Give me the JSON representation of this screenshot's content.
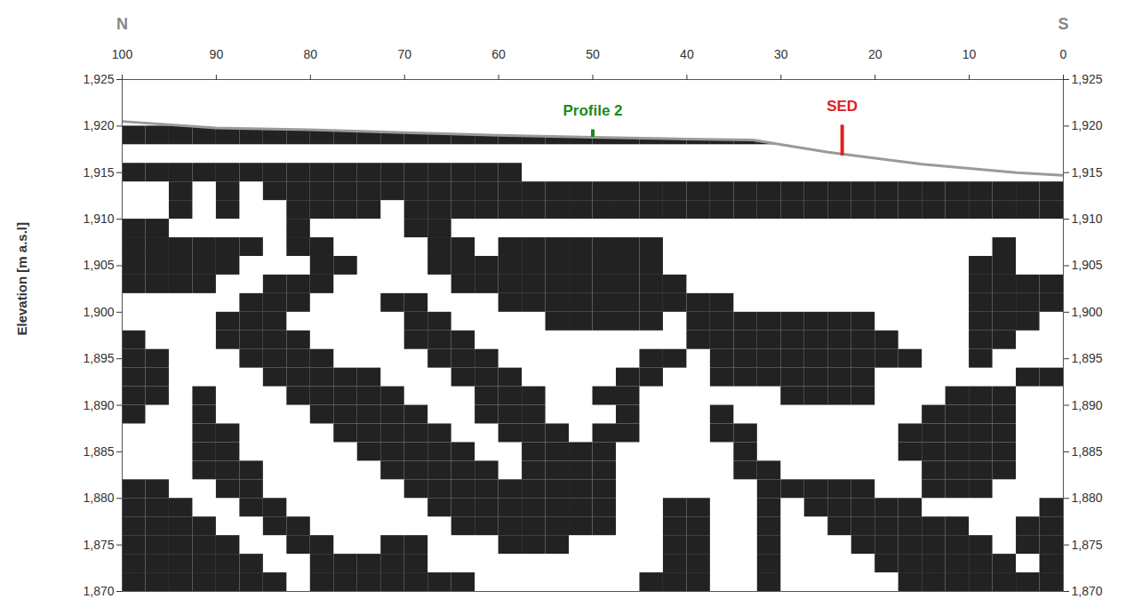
{
  "chart_data": {
    "type": "heatmap",
    "direction_labels": [
      "N",
      "S"
    ],
    "ylabel": "Elevation [m a.s.l]",
    "xlim": [
      100,
      0
    ],
    "xticks": [
      100,
      90,
      80,
      70,
      60,
      50,
      40,
      30,
      20,
      10,
      0
    ],
    "ylim": [
      1870,
      1925
    ],
    "yticks": [
      1870,
      1875,
      1880,
      1885,
      1890,
      1895,
      1900,
      1905,
      1910,
      1915,
      1920,
      1925
    ],
    "color": "#222222",
    "surface": {
      "x": [
        100,
        90,
        80,
        70,
        60,
        50,
        40,
        33,
        25,
        15,
        5,
        0
      ],
      "elevation": [
        1920.5,
        1919.8,
        1919.6,
        1919.3,
        1919.0,
        1918.8,
        1918.6,
        1918.5,
        1917.2,
        1915.9,
        1915.0,
        1914.7
      ],
      "color": "#9a9a9a"
    },
    "annotations": [
      {
        "text": "Profile 2",
        "x": 50,
        "y": [
          1918.8,
          1919.6
        ],
        "color": "#1a8a1a"
      },
      {
        "text": "SED",
        "x": 23.5,
        "y": [
          1916.8,
          1920.1
        ],
        "color": "#e02020"
      }
    ],
    "cells": {
      "x": [
        100,
        97.5,
        95,
        92.5,
        90,
        87.5,
        85,
        82.5,
        80,
        77.5,
        75,
        72.5,
        70,
        67.5,
        65,
        62.5,
        60,
        57.5,
        55,
        52.5,
        50,
        47.5,
        45,
        42.5,
        40,
        37.5,
        35,
        32.5,
        30,
        27.5,
        25,
        22.5,
        20,
        17.5,
        15,
        12.5,
        10,
        7.5,
        5,
        2.5,
        0
      ],
      "y": [
        1922,
        1920,
        1918,
        1916,
        1914,
        1912,
        1910,
        1908,
        1906,
        1904,
        1902,
        1900,
        1898,
        1896,
        1894,
        1892,
        1890,
        1888,
        1886,
        1884,
        1882,
        1880,
        1878,
        1876,
        1874,
        1872,
        1870
      ],
      "values": [
        [
          0,
          0,
          0,
          0,
          0,
          0,
          0,
          0,
          0,
          0,
          0,
          0,
          0,
          0,
          0,
          0,
          0,
          0,
          0,
          0,
          0,
          0,
          0,
          0,
          0,
          0,
          0,
          0,
          0,
          0,
          0,
          0,
          0,
          0,
          0,
          0,
          0,
          0,
          0,
          0
        ],
        [
          1,
          1,
          1,
          1,
          1,
          1,
          1,
          1,
          1,
          1,
          1,
          1,
          1,
          1,
          1,
          1,
          1,
          1,
          1,
          1,
          1,
          1,
          1,
          1,
          1,
          1,
          1,
          1,
          1,
          0,
          0,
          0,
          0,
          0,
          0,
          0,
          0,
          0,
          0,
          0
        ],
        [
          0,
          0,
          0,
          0,
          0,
          0,
          0,
          0,
          0,
          0,
          0,
          0,
          0,
          0,
          0,
          0,
          0,
          0,
          0,
          0,
          0,
          0,
          0,
          0,
          0,
          0,
          0,
          0,
          0,
          0,
          0,
          0,
          0,
          0,
          0,
          0,
          0,
          0,
          0,
          0
        ],
        [
          1,
          1,
          1,
          1,
          1,
          1,
          1,
          1,
          1,
          1,
          1,
          1,
          1,
          1,
          1,
          1,
          1,
          0,
          0,
          0,
          0,
          0,
          0,
          0,
          0,
          0,
          0,
          0,
          0,
          0,
          0,
          0,
          0,
          0,
          0,
          0,
          0,
          0,
          0,
          0
        ],
        [
          0,
          0,
          1,
          0,
          1,
          0,
          1,
          1,
          1,
          1,
          1,
          1,
          1,
          1,
          1,
          1,
          1,
          1,
          1,
          1,
          1,
          1,
          1,
          1,
          1,
          1,
          1,
          1,
          1,
          1,
          1,
          1,
          1,
          1,
          1,
          1,
          1,
          1,
          1,
          1
        ],
        [
          0,
          0,
          1,
          0,
          1,
          0,
          0,
          1,
          1,
          1,
          1,
          0,
          1,
          1,
          1,
          1,
          1,
          1,
          1,
          1,
          1,
          1,
          1,
          1,
          1,
          1,
          1,
          1,
          1,
          1,
          1,
          1,
          1,
          1,
          1,
          1,
          1,
          1,
          1,
          1
        ],
        [
          1,
          1,
          0,
          0,
          0,
          0,
          0,
          1,
          0,
          0,
          0,
          0,
          1,
          1,
          0,
          0,
          0,
          0,
          0,
          0,
          0,
          0,
          0,
          0,
          0,
          0,
          0,
          0,
          0,
          0,
          0,
          0,
          0,
          0,
          0,
          0,
          0,
          0,
          0,
          0
        ],
        [
          1,
          1,
          1,
          1,
          1,
          1,
          0,
          1,
          1,
          0,
          0,
          0,
          0,
          1,
          1,
          0,
          1,
          1,
          1,
          1,
          1,
          1,
          1,
          0,
          0,
          0,
          0,
          0,
          0,
          0,
          0,
          0,
          0,
          0,
          0,
          0,
          0,
          1,
          0,
          0
        ],
        [
          1,
          1,
          1,
          1,
          1,
          0,
          0,
          0,
          1,
          1,
          0,
          0,
          0,
          1,
          1,
          1,
          1,
          1,
          1,
          1,
          1,
          1,
          1,
          0,
          0,
          0,
          0,
          0,
          0,
          0,
          0,
          0,
          0,
          0,
          0,
          0,
          1,
          1,
          0,
          0
        ],
        [
          1,
          1,
          1,
          1,
          0,
          0,
          1,
          1,
          1,
          0,
          0,
          0,
          0,
          0,
          1,
          1,
          1,
          1,
          1,
          1,
          1,
          1,
          1,
          1,
          0,
          0,
          0,
          0,
          0,
          0,
          0,
          0,
          0,
          0,
          0,
          0,
          1,
          1,
          1,
          1
        ],
        [
          0,
          0,
          0,
          0,
          0,
          1,
          1,
          1,
          0,
          0,
          0,
          1,
          1,
          0,
          0,
          0,
          1,
          1,
          1,
          1,
          1,
          1,
          1,
          1,
          1,
          1,
          0,
          0,
          0,
          0,
          0,
          0,
          0,
          0,
          0,
          0,
          1,
          1,
          1,
          1
        ],
        [
          0,
          0,
          0,
          0,
          1,
          1,
          1,
          0,
          0,
          0,
          0,
          0,
          1,
          1,
          0,
          0,
          0,
          0,
          1,
          1,
          1,
          1,
          1,
          0,
          1,
          1,
          1,
          1,
          1,
          1,
          1,
          1,
          0,
          0,
          0,
          0,
          1,
          1,
          1,
          0
        ],
        [
          1,
          0,
          0,
          0,
          1,
          1,
          1,
          1,
          0,
          0,
          0,
          0,
          1,
          1,
          1,
          0,
          0,
          0,
          0,
          0,
          0,
          0,
          0,
          0,
          1,
          1,
          1,
          1,
          1,
          1,
          1,
          1,
          1,
          0,
          0,
          0,
          1,
          1,
          0,
          0
        ],
        [
          1,
          1,
          0,
          0,
          0,
          1,
          1,
          1,
          1,
          0,
          0,
          0,
          0,
          1,
          1,
          1,
          0,
          0,
          0,
          0,
          0,
          0,
          1,
          1,
          0,
          1,
          1,
          1,
          1,
          1,
          1,
          1,
          1,
          1,
          0,
          0,
          1,
          0,
          0,
          0
        ],
        [
          1,
          1,
          0,
          0,
          0,
          0,
          1,
          1,
          1,
          1,
          1,
          0,
          0,
          0,
          1,
          1,
          1,
          0,
          0,
          0,
          0,
          1,
          1,
          0,
          0,
          1,
          1,
          1,
          1,
          1,
          1,
          1,
          0,
          0,
          0,
          0,
          0,
          0,
          1,
          1
        ],
        [
          1,
          1,
          0,
          1,
          0,
          0,
          0,
          1,
          1,
          1,
          1,
          1,
          0,
          0,
          0,
          1,
          1,
          1,
          0,
          0,
          1,
          1,
          0,
          0,
          0,
          0,
          0,
          0,
          1,
          1,
          1,
          1,
          0,
          0,
          0,
          1,
          1,
          1,
          0,
          0
        ],
        [
          1,
          0,
          0,
          1,
          0,
          0,
          0,
          0,
          1,
          1,
          1,
          1,
          1,
          0,
          0,
          1,
          1,
          1,
          0,
          0,
          0,
          1,
          0,
          0,
          0,
          1,
          0,
          0,
          0,
          0,
          0,
          0,
          0,
          0,
          1,
          1,
          1,
          1,
          0,
          0
        ],
        [
          0,
          0,
          0,
          1,
          1,
          0,
          0,
          0,
          0,
          1,
          1,
          1,
          1,
          1,
          0,
          0,
          1,
          1,
          1,
          0,
          1,
          1,
          0,
          0,
          0,
          1,
          1,
          0,
          0,
          0,
          0,
          0,
          0,
          1,
          1,
          1,
          1,
          1,
          0,
          0
        ],
        [
          0,
          0,
          0,
          1,
          1,
          0,
          0,
          0,
          0,
          0,
          1,
          1,
          1,
          1,
          1,
          0,
          0,
          1,
          1,
          1,
          1,
          0,
          0,
          0,
          0,
          0,
          1,
          0,
          0,
          0,
          0,
          0,
          0,
          1,
          1,
          1,
          1,
          1,
          0,
          0
        ],
        [
          0,
          0,
          0,
          1,
          1,
          1,
          0,
          0,
          0,
          0,
          0,
          1,
          1,
          1,
          1,
          1,
          0,
          1,
          1,
          1,
          1,
          0,
          0,
          0,
          0,
          0,
          1,
          1,
          0,
          0,
          0,
          0,
          0,
          0,
          1,
          1,
          1,
          1,
          0,
          0
        ],
        [
          1,
          1,
          0,
          0,
          1,
          1,
          0,
          0,
          0,
          0,
          0,
          0,
          1,
          1,
          1,
          1,
          1,
          1,
          1,
          1,
          1,
          0,
          0,
          0,
          0,
          0,
          0,
          1,
          1,
          1,
          1,
          1,
          0,
          0,
          1,
          1,
          1,
          0,
          0,
          0
        ],
        [
          1,
          1,
          1,
          0,
          0,
          1,
          1,
          0,
          0,
          0,
          0,
          0,
          0,
          1,
          1,
          1,
          1,
          1,
          1,
          1,
          1,
          0,
          0,
          1,
          1,
          0,
          0,
          1,
          0,
          1,
          1,
          1,
          1,
          1,
          0,
          0,
          0,
          0,
          0,
          1
        ],
        [
          1,
          1,
          1,
          1,
          0,
          0,
          1,
          1,
          0,
          0,
          0,
          0,
          0,
          0,
          1,
          1,
          1,
          1,
          1,
          1,
          1,
          0,
          0,
          1,
          1,
          0,
          0,
          1,
          0,
          0,
          1,
          1,
          1,
          1,
          1,
          1,
          0,
          0,
          1,
          1
        ],
        [
          1,
          1,
          1,
          1,
          1,
          0,
          0,
          1,
          1,
          0,
          0,
          1,
          1,
          0,
          0,
          0,
          1,
          1,
          1,
          0,
          0,
          0,
          0,
          1,
          1,
          0,
          0,
          1,
          0,
          0,
          0,
          1,
          1,
          1,
          1,
          1,
          1,
          0,
          1,
          1
        ],
        [
          1,
          1,
          1,
          1,
          1,
          1,
          0,
          0,
          1,
          1,
          1,
          1,
          1,
          0,
          0,
          0,
          0,
          0,
          0,
          0,
          0,
          0,
          0,
          1,
          1,
          0,
          0,
          1,
          0,
          0,
          0,
          0,
          1,
          1,
          1,
          1,
          1,
          1,
          0,
          1
        ],
        [
          1,
          1,
          1,
          1,
          1,
          1,
          1,
          0,
          1,
          1,
          1,
          1,
          1,
          1,
          1,
          0,
          0,
          0,
          0,
          0,
          0,
          0,
          1,
          1,
          1,
          0,
          0,
          1,
          0,
          0,
          0,
          0,
          0,
          1,
          1,
          1,
          1,
          1,
          1,
          1
        ]
      ]
    }
  }
}
